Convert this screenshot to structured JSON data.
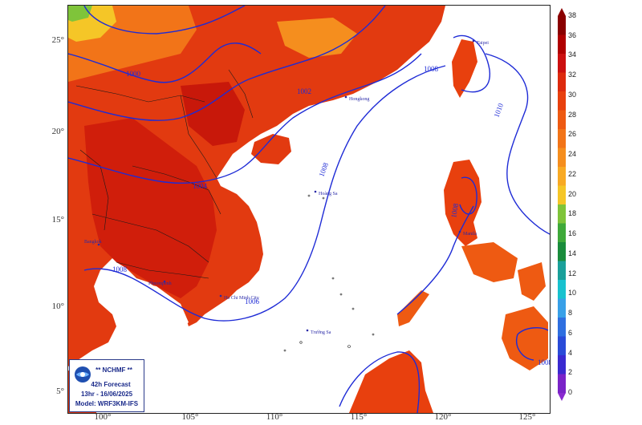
{
  "axes": {
    "lat_labels": [
      "25°",
      "20°",
      "15°",
      "10°",
      "5°"
    ],
    "lon_labels": [
      "100°",
      "105°",
      "110°",
      "115°",
      "120°",
      "125°"
    ]
  },
  "isobars": [
    "1000",
    "1002",
    "1004",
    "1006",
    "1008",
    "1008",
    "1010",
    "1008",
    "1008",
    "1008"
  ],
  "places": [
    "Hoàng Sa",
    "Trường Sa",
    "Hongkong",
    "Taipei",
    "Manila",
    "Bangkok",
    "Phnompenh",
    "Ho Chi Minh City"
  ],
  "legend": {
    "agency": "** NCHMF **",
    "forecast": "42h Forecast",
    "valid": "13hr - 16/06/2025",
    "model": "Model: WRF3KM-IFS"
  },
  "colorbar": {
    "ticks": [
      "38",
      "36",
      "34",
      "32",
      "30",
      "28",
      "26",
      "24",
      "22",
      "20",
      "18",
      "16",
      "14",
      "12",
      "10",
      "8",
      "6",
      "4",
      "2",
      "0"
    ],
    "colors": [
      "#8a0000",
      "#b00000",
      "#cc1010",
      "#dd2a0e",
      "#e8400e",
      "#ee5a12",
      "#f27418",
      "#f58e1e",
      "#f8aa24",
      "#f5c627",
      "#7fc43a",
      "#3fa93a",
      "#1a8c3c",
      "#1aa09a",
      "#18c2cf",
      "#38a0e8",
      "#2f6fe0",
      "#2a4bd8",
      "#3a2ad0",
      "#7a24c8"
    ],
    "arrow_top": "#8a0000",
    "arrow_bottom": "#8a2ad0"
  },
  "colors": {
    "isobar": "#1e2bd6",
    "sea": "#ffffff",
    "hot": "#d8230d",
    "warm": "#ef5a16",
    "mild": "#f58a20"
  }
}
